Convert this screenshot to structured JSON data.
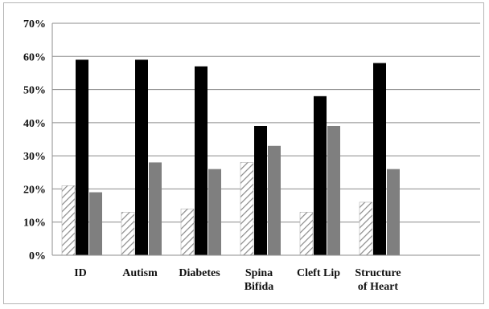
{
  "chart_data": {
    "type": "bar",
    "categories": [
      [
        "ID"
      ],
      [
        "Autism"
      ],
      [
        "Diabetes"
      ],
      [
        "Spina",
        "Bifida"
      ],
      [
        "Cleft Lip"
      ],
      [
        "Structure",
        "of Heart"
      ]
    ],
    "series": [
      {
        "values": [
          21,
          13,
          14,
          28,
          13,
          16
        ],
        "color": "#ffffff",
        "pattern": "diagonal-hatch"
      },
      {
        "values": [
          59,
          59,
          57,
          39,
          48,
          58
        ],
        "color": "#000000"
      },
      {
        "values": [
          19,
          28,
          26,
          33,
          39,
          26
        ],
        "color": "#7f7f7f"
      }
    ],
    "ylim": [
      0,
      70
    ],
    "yticks": [
      "0%",
      "10%",
      "20%",
      "30%",
      "40%",
      "50%",
      "60%",
      "70%"
    ],
    "grid": "horizontal",
    "legend": "none"
  }
}
